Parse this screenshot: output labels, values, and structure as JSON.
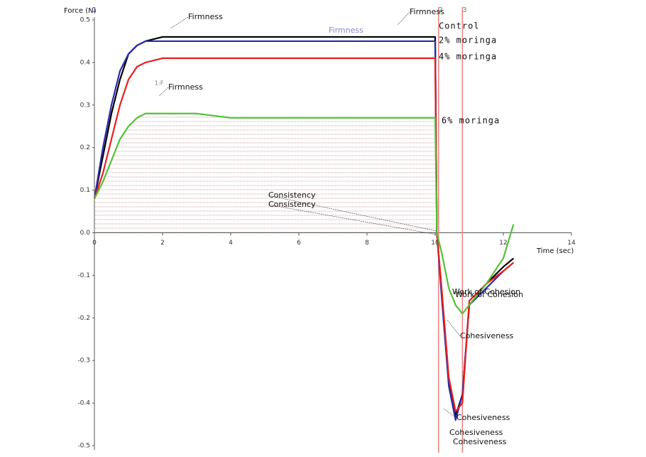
{
  "chart_data": {
    "type": "line",
    "x_label": "Time (sec)",
    "y_label": "Force (N)",
    "x": [
      0,
      0.25,
      0.5,
      0.75,
      1,
      1.25,
      1.5,
      2,
      3,
      4,
      5,
      6,
      7,
      8,
      9,
      10,
      10.05,
      10.2,
      10.4,
      10.6,
      10.8,
      11,
      11.5,
      12,
      12.3
    ],
    "series": [
      {
        "name": "Control",
        "color": "#000000",
        "values": [
          0.08,
          0.18,
          0.28,
          0.36,
          0.42,
          0.44,
          0.45,
          0.46,
          0.46,
          0.46,
          0.46,
          0.46,
          0.46,
          0.46,
          0.46,
          0.46,
          0.0,
          -0.15,
          -0.35,
          -0.43,
          -0.38,
          -0.17,
          -0.12,
          -0.08,
          -0.06
        ]
      },
      {
        "name": "2% moringa",
        "color": "#2b2ba8",
        "values": [
          0.08,
          0.2,
          0.3,
          0.38,
          0.42,
          0.44,
          0.45,
          0.45,
          0.45,
          0.45,
          0.45,
          0.45,
          0.45,
          0.45,
          0.45,
          0.45,
          0.0,
          -0.16,
          -0.36,
          -0.44,
          -0.38,
          -0.17,
          -0.13,
          -0.09,
          -0.07
        ]
      },
      {
        "name": "4% moringa",
        "color": "#e8201c",
        "values": [
          0.08,
          0.14,
          0.22,
          0.3,
          0.36,
          0.39,
          0.4,
          0.41,
          0.41,
          0.41,
          0.41,
          0.41,
          0.41,
          0.41,
          0.41,
          0.41,
          0.0,
          -0.14,
          -0.34,
          -0.42,
          -0.4,
          -0.16,
          -0.12,
          -0.09,
          -0.07
        ]
      },
      {
        "name": "6% moringa",
        "color": "#52c234",
        "values": [
          0.08,
          0.12,
          0.17,
          0.22,
          0.25,
          0.27,
          0.28,
          0.28,
          0.28,
          0.27,
          0.27,
          0.27,
          0.27,
          0.27,
          0.27,
          0.27,
          0.0,
          -0.05,
          -0.13,
          -0.17,
          -0.19,
          -0.17,
          -0.12,
          -0.06,
          0.02
        ]
      }
    ],
    "xlim": [
      0,
      14
    ],
    "ylim": [
      -0.5,
      0.5
    ],
    "xticks": [
      0,
      2,
      4,
      6,
      8,
      10,
      12,
      14
    ],
    "yticks": [
      0.5,
      0.4,
      0.3,
      0.2,
      0.1,
      {
        "value": 0,
        "label": "0.0"
      },
      -0.1,
      -0.2,
      -0.3,
      -0.4,
      -0.5
    ],
    "markers": [
      {
        "label": "1",
        "x": 0
      },
      {
        "label": "2",
        "x": 10.1
      },
      {
        "label": "3",
        "x": 10.8
      }
    ],
    "annotations": [
      "Firmness",
      "Firmness",
      "Firmness",
      "Firmness",
      "1:F",
      "Consistency",
      "Consistency",
      "Work of Cohesion",
      "Work of Cohesion",
      "Cohesiveness",
      "Cohesiveness",
      "Cohesiveness",
      "Cohesiveness"
    ],
    "grid": false
  }
}
